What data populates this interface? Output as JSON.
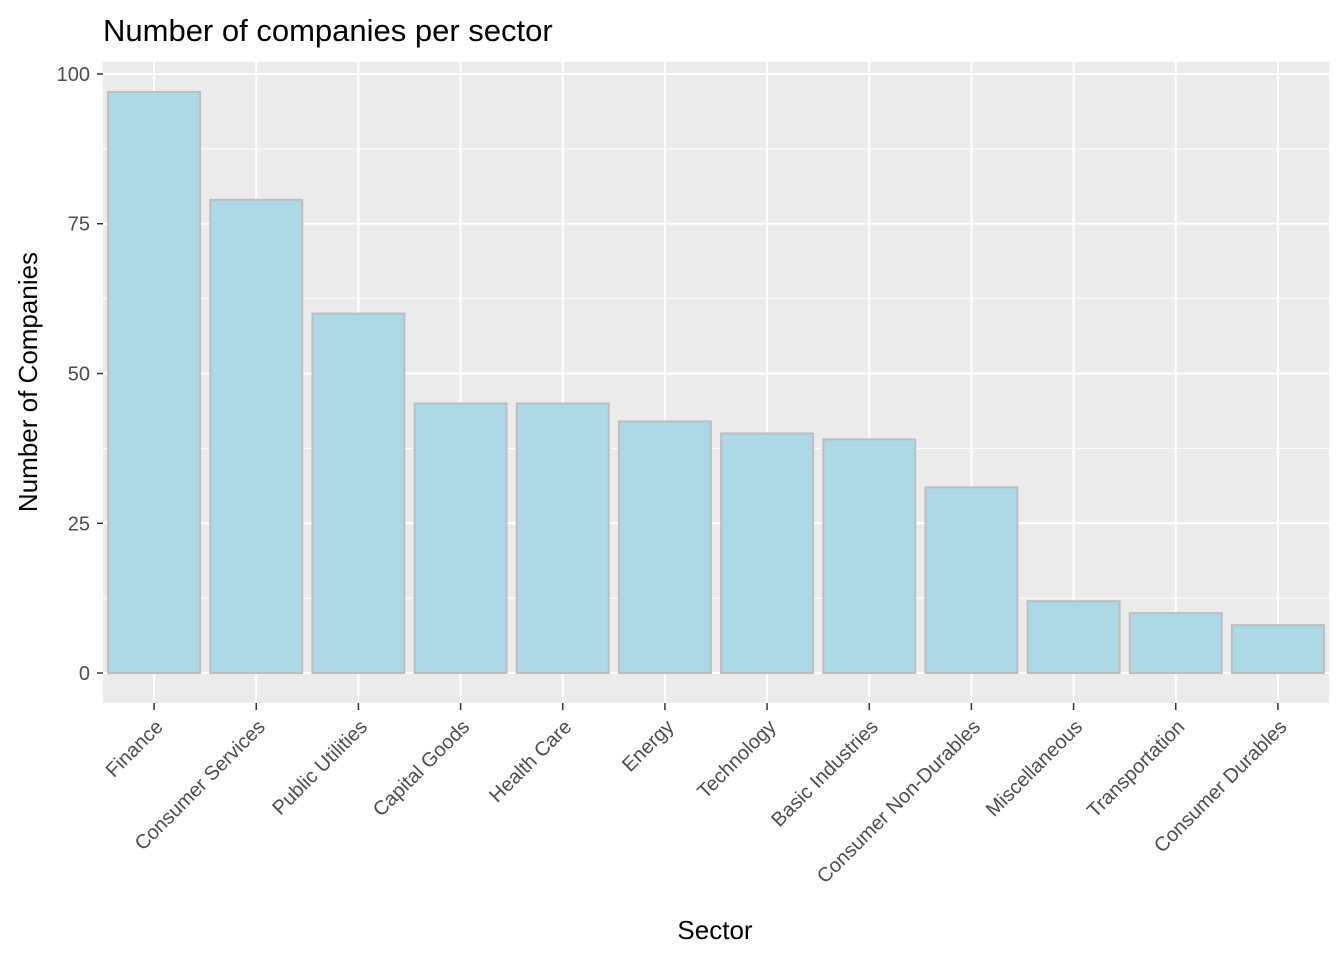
{
  "chart_data": {
    "type": "bar",
    "title": "Number of companies per sector",
    "xlabel": "Sector",
    "ylabel": "Number of Companies",
    "categories": [
      "Finance",
      "Consumer Services",
      "Public Utilities",
      "Capital Goods",
      "Health Care",
      "Energy",
      "Technology",
      "Basic Industries",
      "Consumer Non-Durables",
      "Miscellaneous",
      "Transportation",
      "Consumer Durables"
    ],
    "values": [
      97,
      79,
      60,
      45,
      45,
      42,
      40,
      39,
      31,
      12,
      10,
      8
    ],
    "ylim": [
      -5,
      102
    ],
    "yticks": [
      0,
      25,
      50,
      75,
      100
    ],
    "grid": true,
    "legend": "none",
    "colors": {
      "bar_fill": "#add8e6",
      "bar_stroke": "#bebebe",
      "panel_background": "#ebebeb",
      "grid": "#ffffff",
      "tick_text": "#4d4d4d"
    }
  }
}
